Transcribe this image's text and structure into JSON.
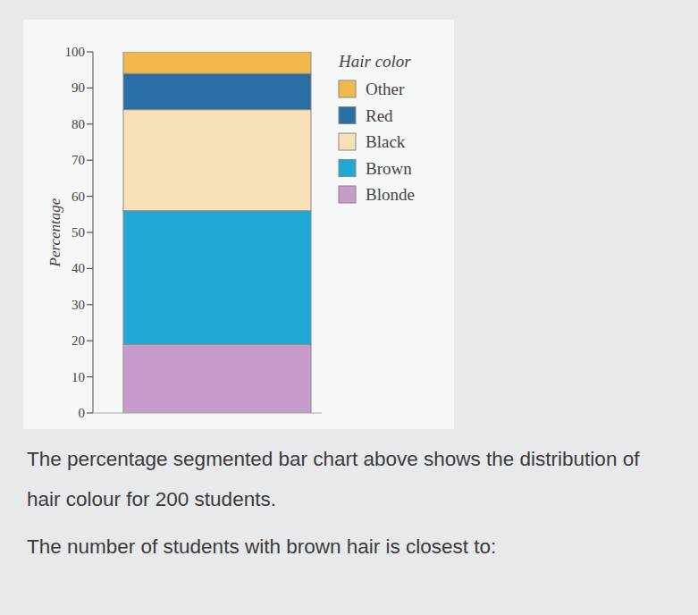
{
  "chart_data": {
    "type": "bar",
    "stacked": true,
    "ylabel": "Percentage",
    "legend_title": "Hair color",
    "categories": [
      null
    ],
    "ylim": [
      0,
      100
    ],
    "yticks": [
      0,
      10,
      20,
      30,
      40,
      50,
      60,
      70,
      80,
      90,
      100
    ],
    "tick_labels": "y",
    "legend": "right",
    "series": [
      {
        "name": "Blonde",
        "color": "#c89cca",
        "values": [
          19
        ]
      },
      {
        "name": "Brown",
        "color": "#1fa7d6",
        "values": [
          37
        ]
      },
      {
        "name": "Black",
        "color": "#f7e0b8",
        "values": [
          28
        ]
      },
      {
        "name": "Red",
        "color": "#286ea4",
        "values": [
          10
        ]
      },
      {
        "name": "Other",
        "color": "#f1b94a",
        "values": [
          6
        ]
      }
    ]
  },
  "question": {
    "paragraphs": [
      "The percentage segmented bar chart above shows the distribution of hair colour for 200 students.",
      "The number of students with brown hair is closest to:"
    ]
  }
}
